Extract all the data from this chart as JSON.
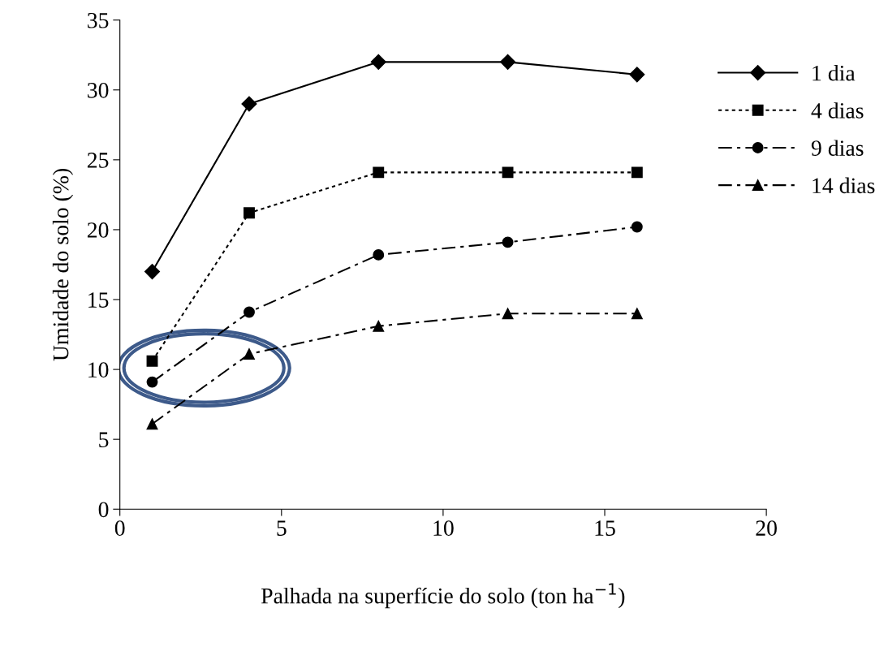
{
  "chart_data": {
    "type": "line",
    "xlabel": "Palhada na superfície do solo (ton ha$^{−1}$)",
    "ylabel": "Umidade do solo (%)",
    "x": [
      1,
      4,
      8,
      12,
      16
    ],
    "series": [
      {
        "name": "1 dia",
        "color": "#000000",
        "values": [
          17,
          29,
          32,
          32,
          31.1
        ],
        "marker": "diamond",
        "line_style": "solid"
      },
      {
        "name": "4 dias",
        "color": "#000000",
        "values": [
          10.6,
          21.2,
          24.1,
          24.1,
          24.1
        ],
        "marker": "square",
        "line_style": "dotted"
      },
      {
        "name": "9 dias",
        "color": "#000000",
        "values": [
          9.1,
          14.1,
          18.2,
          19.1,
          20.2
        ],
        "marker": "circle",
        "line_style": "dashed"
      },
      {
        "name": "14 dias",
        "color": "#000000",
        "values": [
          6.1,
          11.1,
          13.1,
          14.0,
          14.0
        ],
        "marker": "triangle",
        "line_style": "dashed"
      }
    ],
    "xlim": [
      0,
      20
    ],
    "xticks": [
      0,
      5,
      10,
      15,
      20
    ],
    "ylim": [
      0,
      35
    ],
    "yticks": [
      0,
      5,
      10,
      15,
      20,
      25,
      30,
      35
    ],
    "grid": false,
    "legend": "right"
  }
}
